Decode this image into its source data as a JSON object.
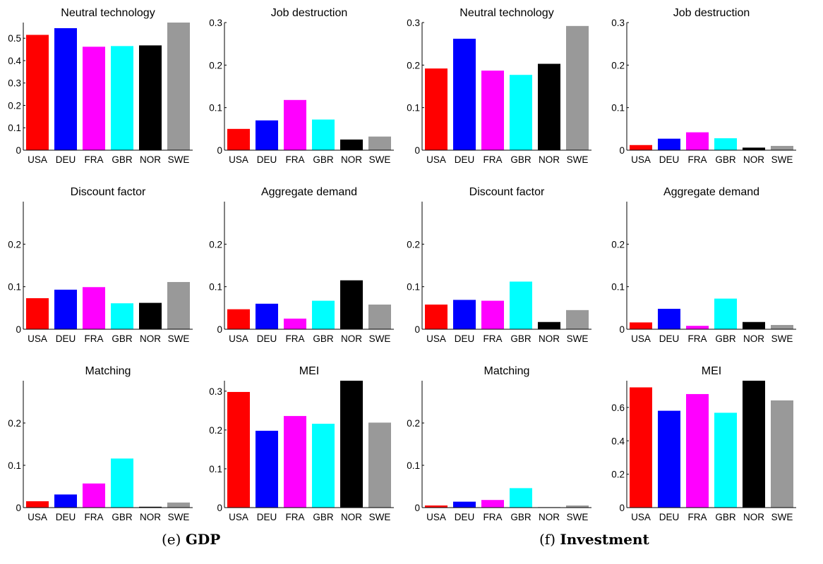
{
  "categories": [
    "USA",
    "DEU",
    "FRA",
    "GBR",
    "NOR",
    "SWE"
  ],
  "colors": {
    "USA": "#ff0000",
    "DEU": "#0000ff",
    "FRA": "#ff00ff",
    "GBR": "#00ffff",
    "NOR": "#000000",
    "SWE": "#999999"
  },
  "captions": [
    {
      "letter": "(e)",
      "text": "GDP"
    },
    {
      "letter": "(f)",
      "text": "Investment"
    }
  ],
  "chart_data": [
    {
      "type": "bar",
      "group": "GDP",
      "title": "Neutral technology",
      "categories": [
        "USA",
        "DEU",
        "FRA",
        "GBR",
        "NOR",
        "SWE"
      ],
      "values": [
        0.515,
        0.545,
        0.462,
        0.465,
        0.468,
        0.57
      ],
      "ylim": [
        0,
        0.57
      ],
      "yticks": [
        0,
        0.1,
        0.2,
        0.3,
        0.4,
        0.5
      ],
      "yticklabels": [
        "0",
        "0.1",
        "0.2",
        "0.3",
        "0.4",
        "0.5"
      ]
    },
    {
      "type": "bar",
      "group": "GDP",
      "title": "Job destruction",
      "categories": [
        "USA",
        "DEU",
        "FRA",
        "GBR",
        "NOR",
        "SWE"
      ],
      "values": [
        0.05,
        0.07,
        0.118,
        0.072,
        0.025,
        0.032
      ],
      "ylim": [
        0,
        0.3
      ],
      "yticks": [
        0,
        0.1,
        0.2,
        0.3
      ],
      "yticklabels": [
        "0",
        "0.1",
        "0.2",
        "0.3"
      ]
    },
    {
      "type": "bar",
      "group": "Investment",
      "title": "Neutral technology",
      "categories": [
        "USA",
        "DEU",
        "FRA",
        "GBR",
        "NOR",
        "SWE"
      ],
      "values": [
        0.192,
        0.262,
        0.187,
        0.177,
        0.203,
        0.292
      ],
      "ylim": [
        0,
        0.3
      ],
      "yticks": [
        0,
        0.1,
        0.2,
        0.3
      ],
      "yticklabels": [
        "0",
        "0.1",
        "0.2",
        "0.3"
      ]
    },
    {
      "type": "bar",
      "group": "Investment",
      "title": "Job destruction",
      "categories": [
        "USA",
        "DEU",
        "FRA",
        "GBR",
        "NOR",
        "SWE"
      ],
      "values": [
        0.012,
        0.027,
        0.042,
        0.028,
        0.006,
        0.01
      ],
      "ylim": [
        0,
        0.3
      ],
      "yticks": [
        0,
        0.1,
        0.2,
        0.3
      ],
      "yticklabels": [
        "0",
        "0.1",
        "0.2",
        "0.3"
      ]
    },
    {
      "type": "bar",
      "group": "GDP",
      "title": "Discount factor",
      "categories": [
        "USA",
        "DEU",
        "FRA",
        "GBR",
        "NOR",
        "SWE"
      ],
      "values": [
        0.073,
        0.093,
        0.099,
        0.061,
        0.062,
        0.111
      ],
      "ylim": [
        0,
        0.3
      ],
      "yticks": [
        0,
        0.1,
        0.2
      ],
      "yticklabels": [
        "0",
        "0.1",
        "0.2"
      ]
    },
    {
      "type": "bar",
      "group": "GDP",
      "title": "Aggregate demand",
      "categories": [
        "USA",
        "DEU",
        "FRA",
        "GBR",
        "NOR",
        "SWE"
      ],
      "values": [
        0.047,
        0.06,
        0.025,
        0.067,
        0.115,
        0.058
      ],
      "ylim": [
        0,
        0.3
      ],
      "yticks": [
        0,
        0.1,
        0.2
      ],
      "yticklabels": [
        "0",
        "0.1",
        "0.2"
      ]
    },
    {
      "type": "bar",
      "group": "Investment",
      "title": "Discount factor",
      "categories": [
        "USA",
        "DEU",
        "FRA",
        "GBR",
        "NOR",
        "SWE"
      ],
      "values": [
        0.058,
        0.069,
        0.067,
        0.112,
        0.017,
        0.045
      ],
      "ylim": [
        0,
        0.3
      ],
      "yticks": [
        0,
        0.1,
        0.2
      ],
      "yticklabels": [
        "0",
        "0.1",
        "0.2"
      ]
    },
    {
      "type": "bar",
      "group": "Investment",
      "title": "Aggregate demand",
      "categories": [
        "USA",
        "DEU",
        "FRA",
        "GBR",
        "NOR",
        "SWE"
      ],
      "values": [
        0.016,
        0.048,
        0.008,
        0.072,
        0.017,
        0.01
      ],
      "ylim": [
        0,
        0.3
      ],
      "yticks": [
        0,
        0.1,
        0.2
      ],
      "yticklabels": [
        "0",
        "0.1",
        "0.2"
      ]
    },
    {
      "type": "bar",
      "group": "GDP",
      "title": "Matching",
      "categories": [
        "USA",
        "DEU",
        "FRA",
        "GBR",
        "NOR",
        "SWE"
      ],
      "values": [
        0.015,
        0.031,
        0.057,
        0.116,
        0.002,
        0.012
      ],
      "ylim": [
        0,
        0.3
      ],
      "yticks": [
        0,
        0.1,
        0.2
      ],
      "yticklabels": [
        "0",
        "0.1",
        "0.2"
      ]
    },
    {
      "type": "bar",
      "group": "GDP",
      "title": "MEI",
      "categories": [
        "USA",
        "DEU",
        "FRA",
        "GBR",
        "NOR",
        "SWE"
      ],
      "values": [
        0.298,
        0.198,
        0.236,
        0.216,
        0.327,
        0.219
      ],
      "ylim": [
        0,
        0.327
      ],
      "yticks": [
        0,
        0.1,
        0.2,
        0.3
      ],
      "yticklabels": [
        "0",
        "0.1",
        "0.2",
        "0.3"
      ]
    },
    {
      "type": "bar",
      "group": "Investment",
      "title": "Matching",
      "categories": [
        "USA",
        "DEU",
        "FRA",
        "GBR",
        "NOR",
        "SWE"
      ],
      "values": [
        0.005,
        0.014,
        0.018,
        0.046,
        0.001,
        0.005
      ],
      "ylim": [
        0,
        0.3
      ],
      "yticks": [
        0,
        0.1,
        0.2
      ],
      "yticklabels": [
        "0",
        "0.1",
        "0.2"
      ]
    },
    {
      "type": "bar",
      "group": "Investment",
      "title": "MEI",
      "categories": [
        "USA",
        "DEU",
        "FRA",
        "GBR",
        "NOR",
        "SWE"
      ],
      "values": [
        0.72,
        0.58,
        0.68,
        0.568,
        0.76,
        0.642
      ],
      "ylim": [
        0,
        0.76
      ],
      "yticks": [
        0,
        0.2,
        0.4,
        0.6
      ],
      "yticklabels": [
        "0",
        "0.2",
        "0.4",
        "0.6"
      ]
    }
  ]
}
